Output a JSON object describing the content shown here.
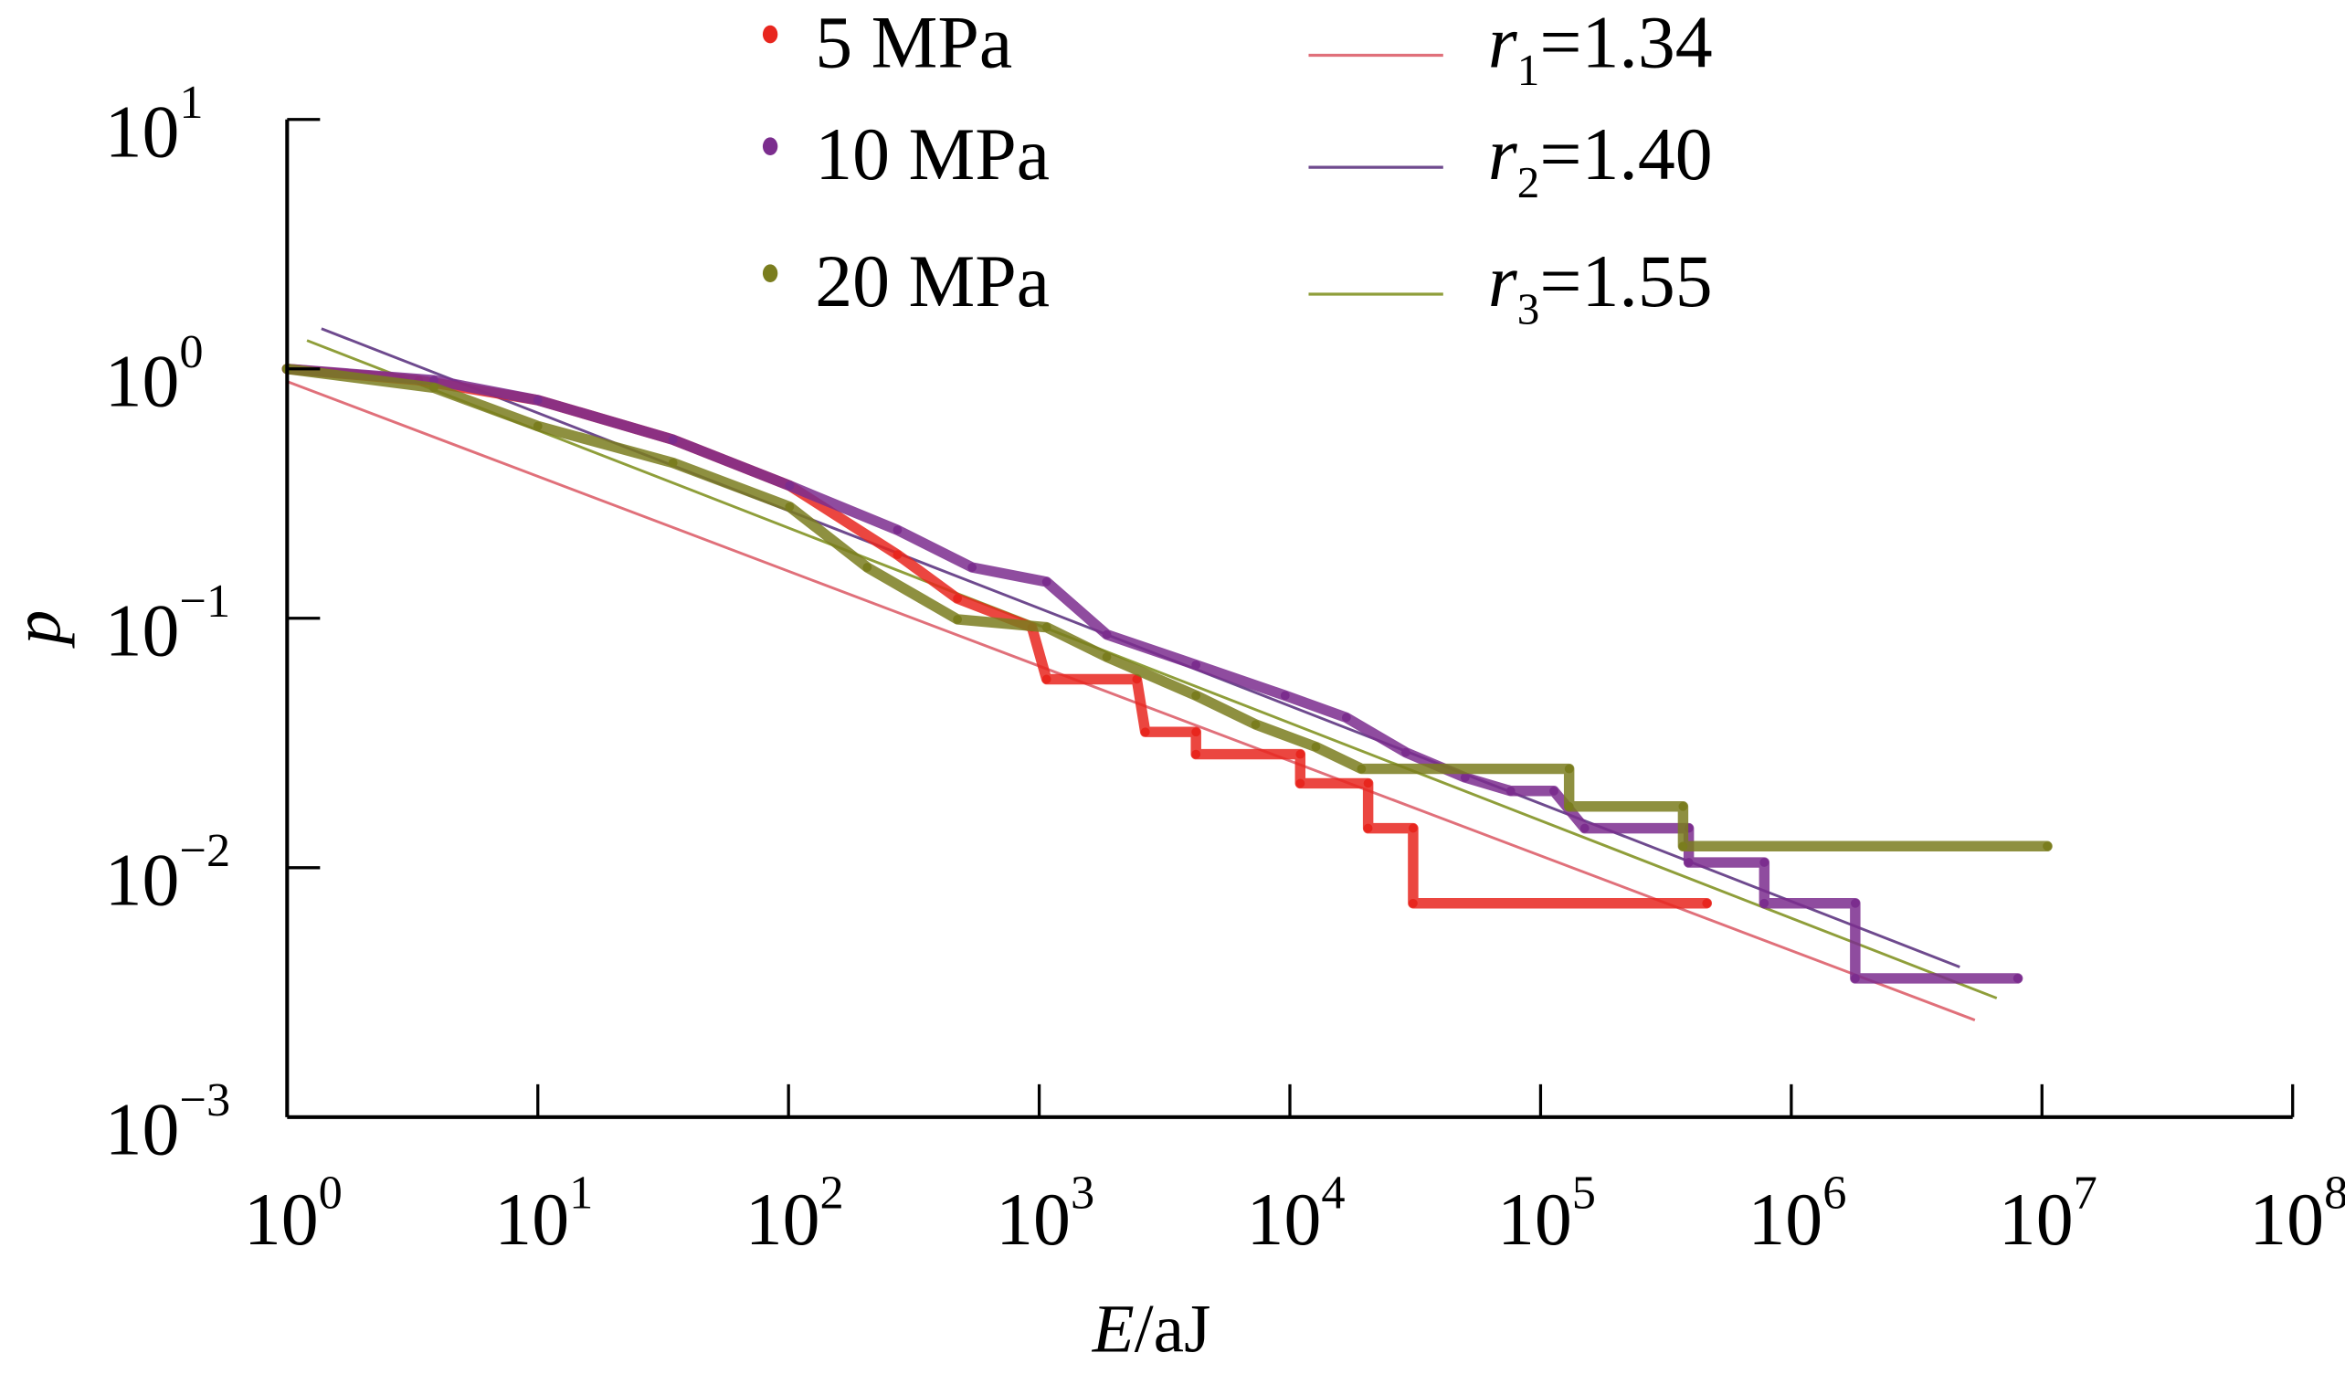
{
  "chart_data": {
    "type": "scatter",
    "title": "",
    "xlabel_italic": "E",
    "xlabel_rest": "/aJ",
    "ylabel": "p",
    "x_scale": "log",
    "y_scale": "log",
    "xlim": [
      1,
      100000000
    ],
    "ylim": [
      0.001,
      10
    ],
    "grid": false,
    "legend_placement": "top",
    "x_ticks": [
      {
        "base": "10",
        "exp": "0"
      },
      {
        "base": "10",
        "exp": "1"
      },
      {
        "base": "10",
        "exp": "2"
      },
      {
        "base": "10",
        "exp": "3"
      },
      {
        "base": "10",
        "exp": "4"
      },
      {
        "base": "10",
        "exp": "5"
      },
      {
        "base": "10",
        "exp": "6"
      },
      {
        "base": "10",
        "exp": "7"
      },
      {
        "base": "10",
        "exp": "8"
      }
    ],
    "y_ticks": [
      {
        "base": "10",
        "exp": "1"
      },
      {
        "base": "10",
        "exp": "0"
      },
      {
        "base": "10",
        "exp": "−1"
      },
      {
        "base": "10",
        "exp": "−2"
      },
      {
        "base": "10",
        "exp": "−3"
      }
    ],
    "series": [
      {
        "name": "5 MPa",
        "color": "#e8261e",
        "points": [
          [
            1,
            1
          ],
          [
            3.35,
            0.9
          ],
          [
            10,
            0.75
          ],
          [
            34.6,
            0.52
          ],
          [
            101,
            0.34
          ],
          [
            272,
            0.18
          ],
          [
            472,
            0.12
          ],
          [
            935,
            0.092
          ],
          [
            1070,
            0.057
          ],
          [
            2450,
            0.057
          ],
          [
            2650,
            0.035
          ],
          [
            4220,
            0.035
          ],
          [
            4220,
            0.0285
          ],
          [
            11000,
            0.0285
          ],
          [
            11000,
            0.0218
          ],
          [
            20500,
            0.0218
          ],
          [
            20500,
            0.0144
          ],
          [
            31000,
            0.0144
          ],
          [
            31000,
            0.0072
          ],
          [
            460000,
            0.0072
          ]
        ]
      },
      {
        "name": "10 MPa",
        "color": "#7b2d8e",
        "points": [
          [
            1,
            1
          ],
          [
            3.85,
            0.9
          ],
          [
            10,
            0.75
          ],
          [
            34.6,
            0.52
          ],
          [
            101,
            0.34
          ],
          [
            272,
            0.226
          ],
          [
            540,
            0.16
          ],
          [
            1070,
            0.14
          ],
          [
            1860,
            0.086
          ],
          [
            4220,
            0.065
          ],
          [
            9570,
            0.049
          ],
          [
            16800,
            0.04
          ],
          [
            29000,
            0.029
          ],
          [
            50000,
            0.023
          ],
          [
            76000,
            0.0203
          ],
          [
            113000,
            0.0203
          ],
          [
            150000,
            0.0144
          ],
          [
            390000,
            0.0144
          ],
          [
            390000,
            0.0105
          ],
          [
            780000,
            0.0105
          ],
          [
            780000,
            0.0072
          ],
          [
            1800000,
            0.0072
          ],
          [
            1800000,
            0.0036
          ],
          [
            8000000,
            0.0036
          ]
        ]
      },
      {
        "name": "20 MPa",
        "color": "#7a7d1e",
        "points": [
          [
            1,
            1
          ],
          [
            3.85,
            0.84
          ],
          [
            10,
            0.59
          ],
          [
            34.6,
            0.42
          ],
          [
            101,
            0.28
          ],
          [
            206,
            0.16
          ],
          [
            472,
            0.099
          ],
          [
            1070,
            0.092
          ],
          [
            1860,
            0.07
          ],
          [
            4220,
            0.049
          ],
          [
            7300,
            0.0375
          ],
          [
            12700,
            0.0305
          ],
          [
            19300,
            0.0249
          ],
          [
            130000,
            0.0249
          ],
          [
            130000,
            0.0176
          ],
          [
            370000,
            0.0176
          ],
          [
            370000,
            0.0122
          ],
          [
            10500000,
            0.0122
          ]
        ]
      }
    ],
    "fits": [
      {
        "label_var": "r",
        "label_sub": "1",
        "label_val": "=1.34",
        "color": "#e0707a",
        "from": [
          1,
          0.89
        ],
        "to": [
          5400000,
          0.00245
        ]
      },
      {
        "label_var": "r",
        "label_sub": "2",
        "label_val": "=1.40",
        "color": "#6e4a8e",
        "from": [
          1.37,
          1.45
        ],
        "to": [
          4700000,
          0.004
        ]
      },
      {
        "label_var": "r",
        "label_sub": "3",
        "label_val": "=1.55",
        "color": "#8f9e3a",
        "from": [
          1.2,
          1.3
        ],
        "to": [
          6600000,
          0.003
        ]
      }
    ]
  }
}
